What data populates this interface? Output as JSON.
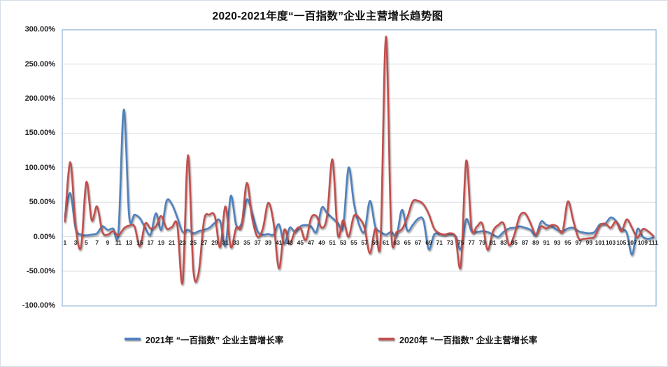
{
  "title": "2020-2021年度“一百指数”企业主营增长趋势图",
  "chart_data": {
    "type": "line",
    "title": "2020-2021年度“一百指数”企业主营增长趋势图",
    "xlabel": "",
    "ylabel": "",
    "ylim": [
      -100,
      300
    ],
    "ytick_step_percent": 50,
    "ytick_labels": [
      "300.00%",
      "250.00%",
      "200.00%",
      "150.00%",
      "100.00%",
      "50.00%",
      "0.00%",
      "-50.00%",
      "-100.00%"
    ],
    "ytick_values": [
      300,
      250,
      200,
      150,
      100,
      50,
      0,
      -50,
      -100
    ],
    "xtick_labels": [
      1,
      3,
      5,
      7,
      9,
      11,
      13,
      15,
      17,
      19,
      21,
      23,
      25,
      27,
      29,
      31,
      33,
      35,
      37,
      39,
      41,
      43,
      45,
      47,
      49,
      51,
      53,
      55,
      57,
      59,
      61,
      63,
      65,
      67,
      69,
      71,
      73,
      75,
      77,
      79,
      81,
      83,
      85,
      87,
      89,
      91,
      93,
      95,
      97,
      99,
      101,
      103,
      105,
      107,
      109,
      111
    ],
    "grid": "horizontal",
    "legend_position": "bottom",
    "x": [
      1,
      2,
      3,
      4,
      5,
      6,
      7,
      8,
      9,
      10,
      11,
      12,
      13,
      14,
      15,
      16,
      17,
      18,
      19,
      20,
      21,
      22,
      23,
      24,
      25,
      26,
      27,
      28,
      29,
      30,
      31,
      32,
      33,
      34,
      35,
      36,
      37,
      38,
      39,
      40,
      41,
      42,
      43,
      44,
      45,
      46,
      47,
      48,
      49,
      50,
      51,
      52,
      53,
      54,
      55,
      56,
      57,
      58,
      59,
      60,
      61,
      62,
      63,
      64,
      65,
      66,
      67,
      68,
      69,
      70,
      71,
      72,
      73,
      74,
      75,
      76,
      77,
      78,
      79,
      80,
      81,
      82,
      83,
      84,
      85,
      86,
      87,
      88,
      89,
      90,
      91,
      92,
      93,
      94,
      95,
      96,
      97,
      98,
      99,
      100,
      101,
      102,
      103,
      104,
      105,
      106,
      107,
      108,
      109,
      110,
      111
    ],
    "unit": "percent",
    "series": [
      {
        "name": "2021年 “一百指数” 企业主营增长率",
        "color": "#4F81BD",
        "values": [
          30,
          63,
          12,
          3,
          2,
          3,
          5,
          15,
          10,
          12,
          7,
          184,
          30,
          32,
          27,
          13,
          3,
          34,
          10,
          52,
          47,
          28,
          7,
          10,
          5,
          8,
          10,
          13,
          20,
          23,
          -13,
          59,
          17,
          19,
          54,
          34,
          8,
          3,
          4,
          3,
          18,
          -10,
          13,
          7,
          15,
          17,
          15,
          7,
          42,
          34,
          27,
          20,
          15,
          100,
          49,
          17,
          8,
          52,
          15,
          7,
          3,
          7,
          2,
          39,
          9,
          17,
          26,
          24,
          -18,
          3,
          4,
          3,
          4,
          1,
          -18,
          25,
          8,
          7,
          8,
          7,
          3,
          0,
          7,
          12,
          13,
          15,
          13,
          10,
          2,
          22,
          17,
          15,
          10,
          8,
          12,
          13,
          8,
          6,
          5,
          7,
          18,
          19,
          28,
          23,
          11,
          6,
          -26,
          11,
          0,
          -3,
          -1
        ]
      },
      {
        "name": "2020年 “一百指数” 企业主营增长率",
        "color": "#C0504D",
        "values": [
          22,
          108,
          15,
          -15,
          79,
          24,
          44,
          7,
          3,
          8,
          2,
          12,
          16,
          15,
          -14,
          19,
          12,
          15,
          30,
          12,
          14,
          17,
          -66,
          118,
          -48,
          -52,
          24,
          32,
          30,
          -15,
          44,
          -15,
          13,
          15,
          78,
          27,
          0,
          12,
          49,
          20,
          -46,
          10,
          -10,
          8,
          13,
          -5,
          27,
          30,
          13,
          30,
          112,
          3,
          24,
          0,
          30,
          27,
          13,
          -24,
          12,
          -5,
          290,
          5,
          7,
          11,
          28,
          51,
          52,
          47,
          33,
          12,
          5,
          3,
          5,
          -1,
          -42,
          110,
          12,
          15,
          19,
          -19,
          8,
          17,
          19,
          -12,
          3,
          30,
          34,
          20,
          3,
          15,
          12,
          17,
          15,
          7,
          51,
          24,
          -2,
          -3,
          -2,
          0,
          16,
          19,
          13,
          22,
          8,
          25,
          13,
          -1,
          11,
          8,
          1
        ]
      }
    ],
    "plot_border_color": "#9fbcdc",
    "gridline_color": "#d9dde3"
  }
}
